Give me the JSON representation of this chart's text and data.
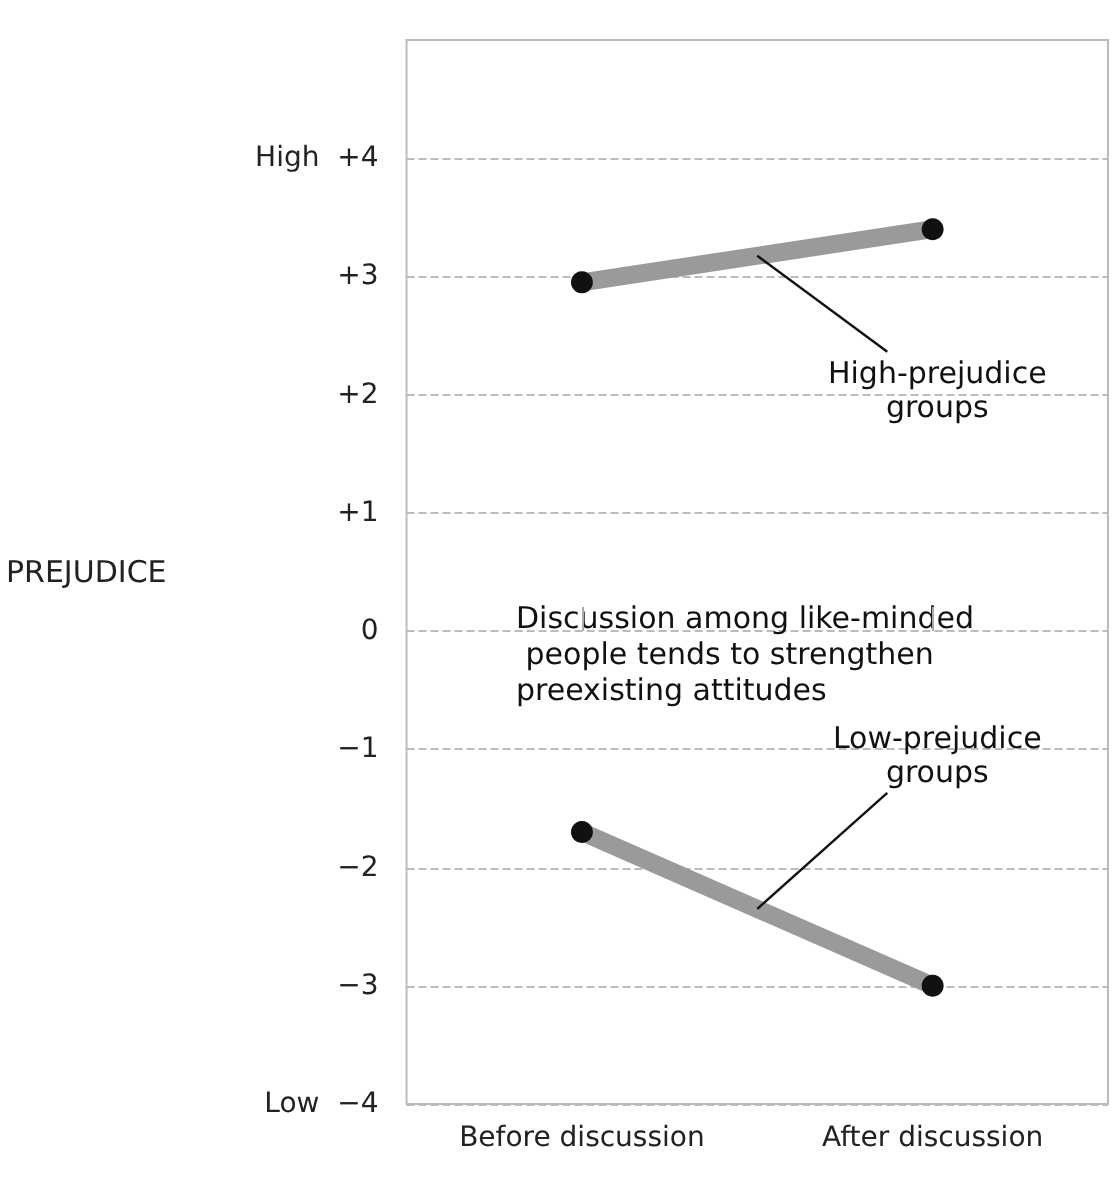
{
  "chart_data": {
    "type": "line",
    "ylabel": "PREJUDICE",
    "categories": [
      "Before discussion",
      "After discussion"
    ],
    "series": [
      {
        "name": "High-prejudice groups",
        "color": "#9a9a9a",
        "values": [
          2.95,
          3.4
        ]
      },
      {
        "name": "Low-prejudice groups",
        "color": "#9a9a9a",
        "values": [
          -1.7,
          -3.0
        ]
      }
    ],
    "ylim": [
      -4,
      5
    ],
    "yticks": [
      {
        "value": -4,
        "label": "Low  −4"
      },
      {
        "value": -3,
        "label": "−3"
      },
      {
        "value": -2,
        "label": "−2"
      },
      {
        "value": -1,
        "label": "−1"
      },
      0,
      {
        "value": 1,
        "label": "+1"
      },
      {
        "value": 2,
        "label": "+2"
      },
      {
        "value": 3,
        "label": "+3"
      },
      {
        "value": 4,
        "label": "High  +4"
      }
    ],
    "grid": "y",
    "marker": "circle",
    "line_style": "solid",
    "annotations": [
      "Discussion among like-minded people tends to strengthen preexisting attitudes"
    ]
  }
}
